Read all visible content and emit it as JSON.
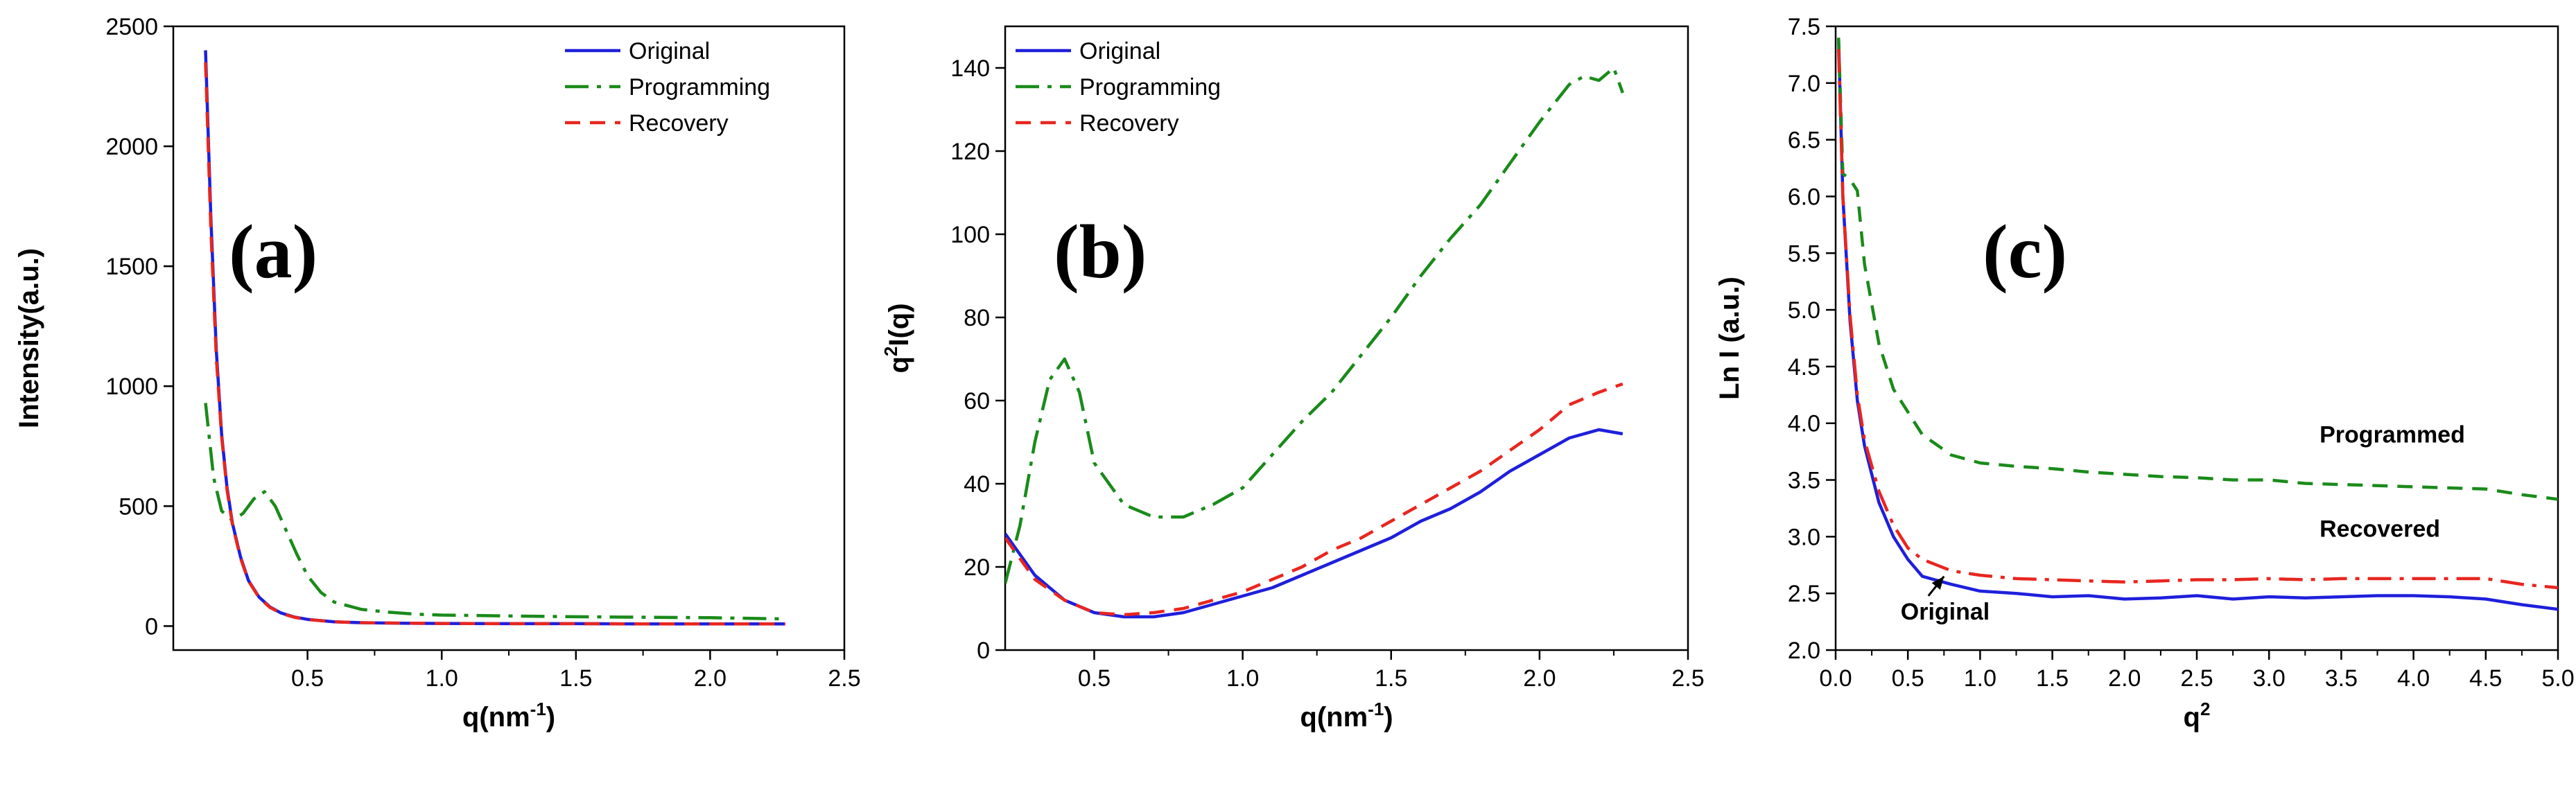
{
  "colors": {
    "original": "#1f1fdc",
    "programming": "#1a8a1a",
    "recovery": "#e8261f"
  },
  "chart_data": [
    {
      "id": "a",
      "type": "line",
      "panel_label": "(a)",
      "xlabel": "q(nm",
      "xlabel_sup": "-1",
      "xlabel_tail": ")",
      "ylabel": "Intensity(a.u.)",
      "xlim": [
        0,
        2.5
      ],
      "ylim": [
        -100,
        2500
      ],
      "xticks": [
        0.5,
        1.0,
        1.5,
        2.0,
        2.5
      ],
      "yticks": [
        0,
        500,
        1000,
        1500,
        2000,
        2500
      ],
      "legend": [
        "Original",
        "Programming",
        "Recovery"
      ],
      "legend_position": "top-right",
      "series": [
        {
          "name": "Original",
          "style": "solid",
          "color_key": "original",
          "x": [
            0.12,
            0.14,
            0.16,
            0.18,
            0.2,
            0.22,
            0.25,
            0.28,
            0.32,
            0.36,
            0.4,
            0.45,
            0.5,
            0.6,
            0.7,
            0.85,
            1.0,
            1.25,
            1.5,
            1.75,
            2.0,
            2.28
          ],
          "y": [
            2400,
            1700,
            1150,
            800,
            580,
            430,
            290,
            190,
            120,
            80,
            55,
            38,
            28,
            18,
            14,
            12,
            11,
            10,
            10,
            9,
            9,
            9
          ]
        },
        {
          "name": "Programming",
          "style": "dashdot",
          "color_key": "programming",
          "x": [
            0.12,
            0.15,
            0.18,
            0.22,
            0.26,
            0.3,
            0.34,
            0.38,
            0.42,
            0.46,
            0.5,
            0.55,
            0.6,
            0.7,
            0.8,
            0.9,
            1.0,
            1.25,
            1.5,
            1.75,
            2.0,
            2.28
          ],
          "y": [
            930,
            620,
            480,
            440,
            470,
            530,
            560,
            500,
            400,
            300,
            210,
            140,
            100,
            70,
            58,
            50,
            46,
            42,
            39,
            37,
            35,
            30
          ]
        },
        {
          "name": "Recovery",
          "style": "dashed",
          "color_key": "recovery",
          "x": [
            0.12,
            0.14,
            0.16,
            0.18,
            0.2,
            0.22,
            0.25,
            0.28,
            0.32,
            0.36,
            0.4,
            0.45,
            0.5,
            0.6,
            0.7,
            0.85,
            1.0,
            1.25,
            1.5,
            1.75,
            2.0,
            2.28
          ],
          "y": [
            2350,
            1650,
            1120,
            790,
            570,
            425,
            285,
            188,
            118,
            78,
            54,
            37,
            27,
            18,
            14,
            12,
            11,
            10,
            10,
            9,
            9,
            9
          ]
        }
      ]
    },
    {
      "id": "b",
      "type": "line",
      "panel_label": "(b)",
      "xlabel": "q(nm",
      "xlabel_sup": "-1",
      "xlabel_tail": ")",
      "ylabel": "q",
      "ylabel_sup": "2",
      "ylabel_tail": "I(q)",
      "xlim": [
        0.2,
        2.5
      ],
      "ylim": [
        0,
        150
      ],
      "xticks": [
        0.5,
        1.0,
        1.5,
        2.0,
        2.5
      ],
      "yticks": [
        0,
        20,
        40,
        60,
        80,
        100,
        120,
        140
      ],
      "legend": [
        "Original",
        "Programming",
        "Recovery"
      ],
      "legend_position": "top-left",
      "series": [
        {
          "name": "Original",
          "style": "solid",
          "color_key": "original",
          "x": [
            0.2,
            0.3,
            0.4,
            0.5,
            0.6,
            0.7,
            0.8,
            0.9,
            1.0,
            1.1,
            1.2,
            1.3,
            1.4,
            1.5,
            1.6,
            1.7,
            1.8,
            1.9,
            2.0,
            2.1,
            2.2,
            2.28
          ],
          "y": [
            28,
            18,
            12,
            9,
            8,
            8,
            9,
            11,
            13,
            15,
            18,
            21,
            24,
            27,
            31,
            34,
            38,
            43,
            47,
            51,
            53,
            52
          ]
        },
        {
          "name": "Programming",
          "style": "dashdot",
          "color_key": "programming",
          "x": [
            0.2,
            0.25,
            0.3,
            0.35,
            0.4,
            0.45,
            0.5,
            0.6,
            0.7,
            0.8,
            0.9,
            1.0,
            1.1,
            1.2,
            1.3,
            1.4,
            1.5,
            1.6,
            1.7,
            1.8,
            1.9,
            2.0,
            2.1,
            2.15,
            2.2,
            2.25,
            2.28
          ],
          "y": [
            16,
            30,
            50,
            65,
            70,
            62,
            45,
            35,
            32,
            32,
            35,
            39,
            47,
            55,
            62,
            71,
            80,
            90,
            99,
            107,
            117,
            127,
            136,
            138,
            137,
            140,
            134
          ]
        },
        {
          "name": "Recovery",
          "style": "dashed",
          "color_key": "recovery",
          "x": [
            0.2,
            0.3,
            0.4,
            0.5,
            0.6,
            0.7,
            0.8,
            0.9,
            1.0,
            1.1,
            1.2,
            1.3,
            1.4,
            1.5,
            1.6,
            1.7,
            1.8,
            1.9,
            2.0,
            2.1,
            2.2,
            2.28
          ],
          "y": [
            27,
            17,
            12,
            9,
            8.5,
            9,
            10,
            12,
            14,
            17,
            20,
            24,
            27,
            31,
            35,
            39,
            43,
            48,
            53,
            59,
            62,
            64
          ]
        }
      ]
    },
    {
      "id": "c",
      "type": "line",
      "panel_label": "(c)",
      "xlabel": "q",
      "xlabel_sup": "2",
      "ylabel": "Ln I (a.u.)",
      "xlim": [
        0,
        5.0
      ],
      "ylim": [
        2.0,
        7.5
      ],
      "xticks": [
        0.0,
        0.5,
        1.0,
        1.5,
        2.0,
        2.5,
        3.0,
        3.5,
        4.0,
        4.5,
        5.0
      ],
      "yticks": [
        2.0,
        2.5,
        3.0,
        3.5,
        4.0,
        4.5,
        5.0,
        5.5,
        6.0,
        6.5,
        7.0,
        7.5
      ],
      "annotations": [
        {
          "text": "Programmed",
          "x": 3.35,
          "y": 3.83
        },
        {
          "text": "Recovered",
          "x": 3.35,
          "y": 3.0
        },
        {
          "text": "Original",
          "x": 0.45,
          "y": 2.27,
          "arrow_to": [
            0.75,
            2.65
          ]
        }
      ],
      "series": [
        {
          "name": "Original",
          "style": "solid",
          "color_key": "original",
          "x": [
            0.02,
            0.05,
            0.1,
            0.15,
            0.2,
            0.3,
            0.4,
            0.5,
            0.6,
            0.8,
            1.0,
            1.25,
            1.5,
            1.75,
            2.0,
            2.25,
            2.5,
            2.75,
            3.0,
            3.25,
            3.5,
            3.75,
            4.0,
            4.25,
            4.5,
            4.75,
            5.0
          ],
          "y": [
            7.4,
            6.0,
            4.9,
            4.2,
            3.8,
            3.3,
            3.0,
            2.8,
            2.65,
            2.58,
            2.52,
            2.5,
            2.47,
            2.48,
            2.45,
            2.46,
            2.48,
            2.45,
            2.47,
            2.46,
            2.47,
            2.48,
            2.48,
            2.47,
            2.45,
            2.4,
            2.36
          ]
        },
        {
          "name": "Programmed",
          "style": "dashed",
          "color_key": "programming",
          "x": [
            0.02,
            0.05,
            0.1,
            0.15,
            0.2,
            0.3,
            0.4,
            0.5,
            0.6,
            0.8,
            1.0,
            1.25,
            1.5,
            1.75,
            2.0,
            2.25,
            2.5,
            2.75,
            3.0,
            3.25,
            3.5,
            3.75,
            4.0,
            4.25,
            4.5,
            4.75,
            5.0
          ],
          "y": [
            7.4,
            6.2,
            6.15,
            6.05,
            5.4,
            4.7,
            4.3,
            4.1,
            3.9,
            3.72,
            3.65,
            3.62,
            3.6,
            3.57,
            3.55,
            3.53,
            3.52,
            3.5,
            3.5,
            3.47,
            3.46,
            3.45,
            3.44,
            3.43,
            3.42,
            3.37,
            3.33
          ]
        },
        {
          "name": "Recovered",
          "style": "dashdot",
          "color_key": "recovery",
          "x": [
            0.02,
            0.05,
            0.1,
            0.15,
            0.2,
            0.3,
            0.4,
            0.5,
            0.6,
            0.8,
            1.0,
            1.25,
            1.5,
            1.75,
            2.0,
            2.25,
            2.5,
            2.75,
            3.0,
            3.25,
            3.5,
            3.75,
            4.0,
            4.25,
            4.5,
            4.75,
            5.0
          ],
          "y": [
            7.3,
            6.0,
            4.95,
            4.25,
            3.85,
            3.4,
            3.1,
            2.9,
            2.8,
            2.7,
            2.66,
            2.63,
            2.62,
            2.61,
            2.6,
            2.61,
            2.62,
            2.62,
            2.63,
            2.62,
            2.63,
            2.63,
            2.63,
            2.63,
            2.63,
            2.58,
            2.55
          ]
        }
      ]
    }
  ]
}
